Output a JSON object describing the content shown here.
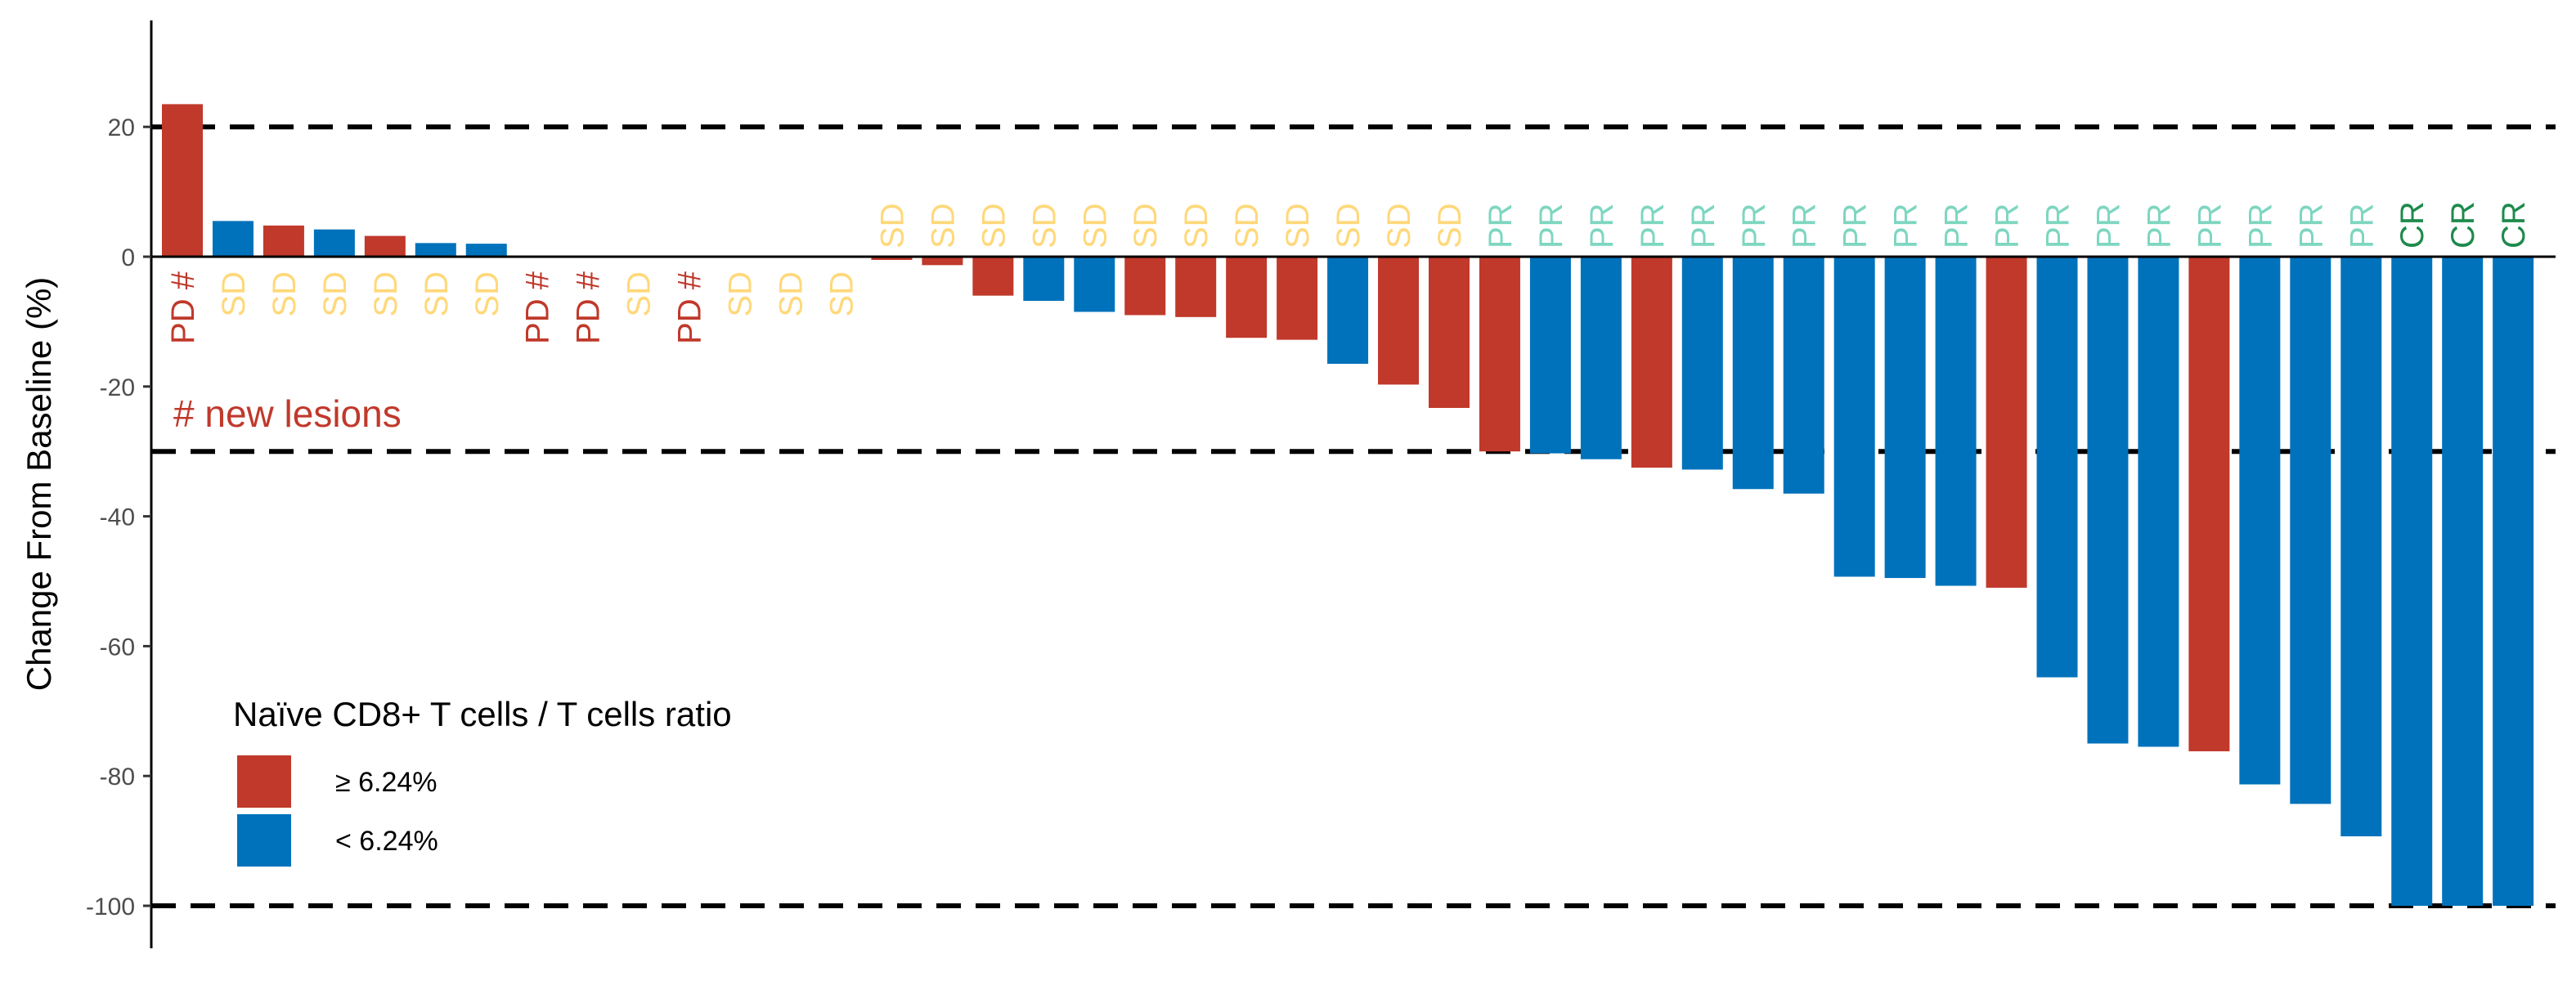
{
  "chart_data": {
    "type": "bar",
    "ylabel": "Change From Baseline (%)",
    "ylim": [
      -106,
      37
    ],
    "yticks": [
      20,
      0,
      -20,
      -40,
      -60,
      -80,
      -100
    ],
    "reference_lines": [
      20,
      -30,
      -100
    ],
    "annotation": "# new lesions",
    "legend": {
      "title": "Naïve CD8+ T cells / T cells ratio",
      "position": "bottom-left",
      "entries": [
        {
          "key": "high",
          "label": "≥ 6.24%",
          "color": "#C0392B"
        },
        {
          "key": "low",
          "label": "< 6.24%",
          "color": "#0072BB"
        }
      ]
    },
    "response_colors": {
      "PD": "#C0392B",
      "SD": "#FFD87A",
      "PR": "#7ED6C0",
      "CR": "#1E8A4C"
    },
    "bars": [
      {
        "value": 23.5,
        "group": "high",
        "response": "PD #"
      },
      {
        "value": 5.5,
        "group": "low",
        "response": "SD"
      },
      {
        "value": 4.8,
        "group": "high",
        "response": "SD"
      },
      {
        "value": 4.2,
        "group": "low",
        "response": "SD"
      },
      {
        "value": 3.2,
        "group": "high",
        "response": "SD"
      },
      {
        "value": 2.1,
        "group": "low",
        "response": "SD"
      },
      {
        "value": 2.0,
        "group": "low",
        "response": "SD"
      },
      {
        "value": 0,
        "group": "high",
        "response": "PD #"
      },
      {
        "value": 0,
        "group": "high",
        "response": "PD #"
      },
      {
        "value": 0,
        "group": "high",
        "response": "SD"
      },
      {
        "value": 0,
        "group": "high",
        "response": "PD #"
      },
      {
        "value": 0,
        "group": "high",
        "response": "SD"
      },
      {
        "value": 0,
        "group": "high",
        "response": "SD"
      },
      {
        "value": 0,
        "group": "high",
        "response": "SD"
      },
      {
        "value": -0.5,
        "group": "high",
        "response": "SD"
      },
      {
        "value": -1.3,
        "group": "high",
        "response": "SD"
      },
      {
        "value": -6.0,
        "group": "high",
        "response": "SD"
      },
      {
        "value": -6.8,
        "group": "low",
        "response": "SD"
      },
      {
        "value": -8.5,
        "group": "low",
        "response": "SD"
      },
      {
        "value": -9.0,
        "group": "high",
        "response": "SD"
      },
      {
        "value": -9.3,
        "group": "high",
        "response": "SD"
      },
      {
        "value": -12.5,
        "group": "high",
        "response": "SD"
      },
      {
        "value": -12.8,
        "group": "high",
        "response": "SD"
      },
      {
        "value": -16.5,
        "group": "low",
        "response": "SD"
      },
      {
        "value": -19.7,
        "group": "high",
        "response": "SD"
      },
      {
        "value": -23.3,
        "group": "high",
        "response": "SD"
      },
      {
        "value": -30.0,
        "group": "high",
        "response": "PR"
      },
      {
        "value": -30.3,
        "group": "low",
        "response": "PR"
      },
      {
        "value": -31.2,
        "group": "low",
        "response": "PR"
      },
      {
        "value": -32.5,
        "group": "high",
        "response": "PR"
      },
      {
        "value": -32.8,
        "group": "low",
        "response": "PR"
      },
      {
        "value": -35.8,
        "group": "low",
        "response": "PR"
      },
      {
        "value": -36.5,
        "group": "low",
        "response": "PR"
      },
      {
        "value": -49.3,
        "group": "low",
        "response": "PR"
      },
      {
        "value": -49.5,
        "group": "low",
        "response": "PR"
      },
      {
        "value": -50.7,
        "group": "low",
        "response": "PR"
      },
      {
        "value": -51.0,
        "group": "high",
        "response": "PR"
      },
      {
        "value": -64.8,
        "group": "low",
        "response": "PR"
      },
      {
        "value": -75.0,
        "group": "low",
        "response": "PR"
      },
      {
        "value": -75.5,
        "group": "low",
        "response": "PR"
      },
      {
        "value": -76.2,
        "group": "high",
        "response": "PR"
      },
      {
        "value": -81.3,
        "group": "low",
        "response": "PR"
      },
      {
        "value": -84.3,
        "group": "low",
        "response": "PR"
      },
      {
        "value": -89.3,
        "group": "low",
        "response": "PR"
      },
      {
        "value": -100,
        "group": "low",
        "response": "CR"
      },
      {
        "value": -100,
        "group": "low",
        "response": "CR"
      },
      {
        "value": -100,
        "group": "low",
        "response": "CR"
      }
    ]
  }
}
